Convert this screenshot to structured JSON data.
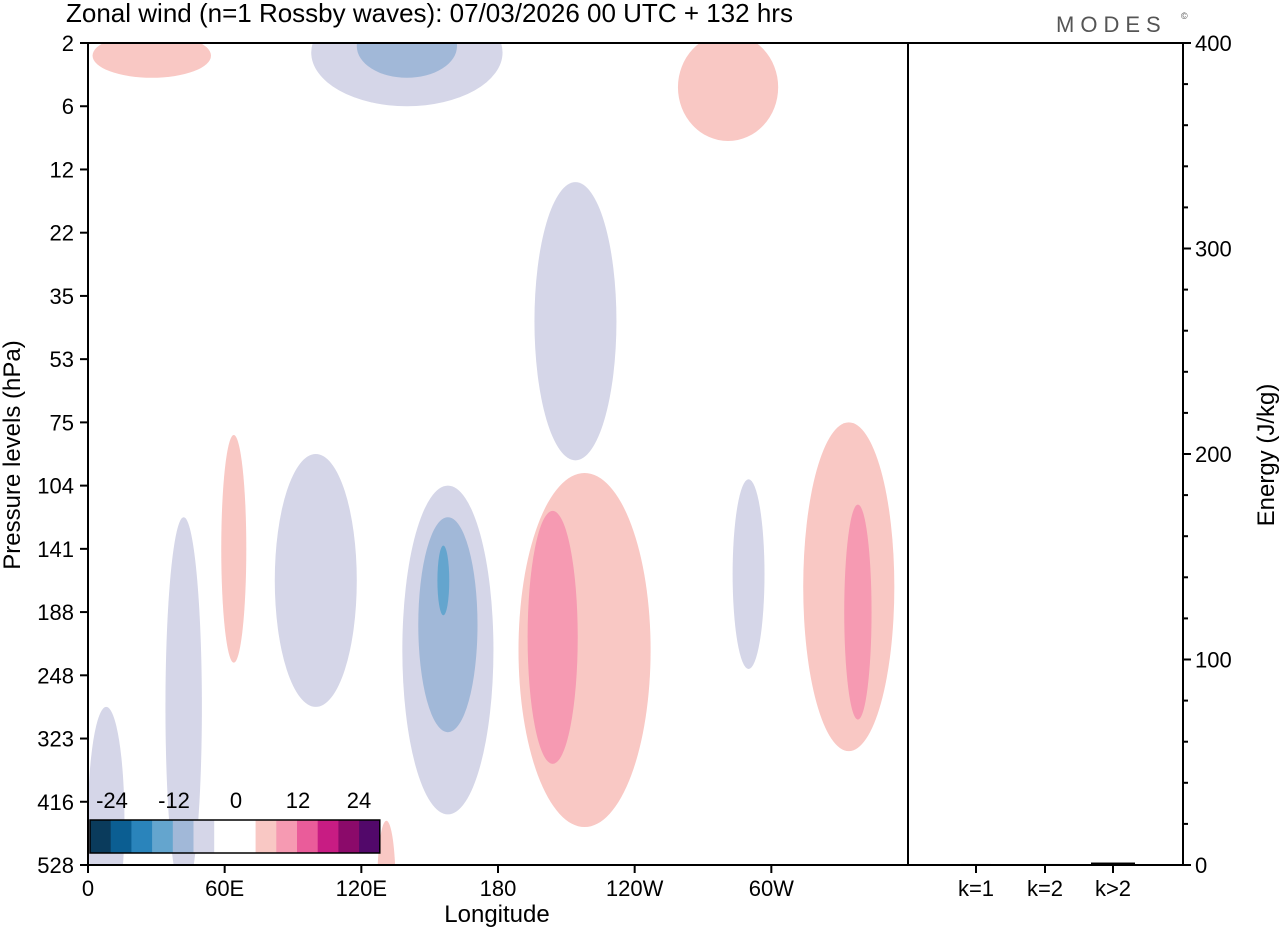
{
  "chart_data": {
    "type": "heatmap",
    "title": "Zonal wind (n=1 Rossby waves):  07/03/2026  00 UTC  + 132 hrs",
    "brand": "MODES",
    "brand_mark": "©",
    "xlabel": "Longitude",
    "ylabel": "Pressure levels (hPa)",
    "y2label": "Energy (J/kg)",
    "x_ticks": [
      "0",
      "60E",
      "120E",
      "180",
      "120W",
      "60W"
    ],
    "x_tick_values": [
      0,
      60,
      120,
      180,
      240,
      300
    ],
    "xlim": [
      0,
      360
    ],
    "y_ticks": [
      "2",
      "6",
      "12",
      "22",
      "35",
      "53",
      "75",
      "104",
      "141",
      "188",
      "248",
      "323",
      "416",
      "528"
    ],
    "y2_ticks": [
      "400",
      "300",
      "200",
      "100",
      "0"
    ],
    "y2_tick_values": [
      400,
      300,
      200,
      100,
      0
    ],
    "y2lim": [
      0,
      400
    ],
    "colorbar_labels": [
      "-24",
      "-12",
      "0",
      "12",
      "24"
    ],
    "colorbar_colors": [
      "#0a3b5c",
      "#0b5e92",
      "#2a84bb",
      "#64a5ce",
      "#a1b8d8",
      "#d5d6e8",
      "#ffffff",
      "#ffffff",
      "#f9c8c4",
      "#f69ab2",
      "#ea5c9a",
      "#c81c83",
      "#8b0a6a",
      "#52086a"
    ],
    "energy_categories": [
      "k=1",
      "k=2",
      "k>2"
    ],
    "energy_values": [
      0.5,
      0.5,
      1.2
    ],
    "contours": [
      {
        "level": "-6",
        "color": "#d5d6e8",
        "lon_center": 42,
        "level_center": 10.5,
        "lon_radius": 8,
        "level_radius": 3.0
      },
      {
        "level": "-6",
        "color": "#d5d6e8",
        "lon_center": 8,
        "level_center": 12.3,
        "lon_radius": 8,
        "level_radius": 1.8
      },
      {
        "level": "-6",
        "color": "#d5d6e8",
        "lon_center": 100,
        "level_center": 8.5,
        "lon_radius": 18,
        "level_radius": 2.0
      },
      {
        "level": "-6",
        "color": "#d5d6e8",
        "lon_center": 158,
        "level_center": 9.6,
        "lon_radius": 20,
        "level_radius": 2.6
      },
      {
        "level": "-6",
        "color": "#d5d6e8",
        "lon_center": 214,
        "level_center": 4.4,
        "lon_radius": 18,
        "level_radius": 2.2
      },
      {
        "level": "-6",
        "color": "#d5d6e8",
        "lon_center": 290,
        "level_center": 8.4,
        "lon_radius": 7,
        "level_radius": 1.5
      },
      {
        "level": "-6",
        "color": "#d5d6e8",
        "lon_center": 140,
        "level_center": 0.15,
        "lon_radius": 42,
        "level_radius": 0.85
      },
      {
        "level": "-12",
        "color": "#a1b8d8",
        "lon_center": 158,
        "level_center": 9.2,
        "lon_radius": 13,
        "level_radius": 1.7
      },
      {
        "level": "-12",
        "color": "#a1b8d8",
        "lon_center": 140,
        "level_center": 0.05,
        "lon_radius": 22,
        "level_radius": 0.5
      },
      {
        "level": "-18",
        "color": "#64a5ce",
        "lon_center": 156,
        "level_center": 8.5,
        "lon_radius": 2.6,
        "level_radius": 0.55
      },
      {
        "level": "6",
        "color": "#f9c8c4",
        "lon_center": 64,
        "level_center": 8.0,
        "lon_radius": 5.5,
        "level_radius": 1.8
      },
      {
        "level": "6",
        "color": "#f9c8c4",
        "lon_center": 218,
        "level_center": 9.6,
        "lon_radius": 29,
        "level_radius": 2.8
      },
      {
        "level": "6",
        "color": "#f9c8c4",
        "lon_center": 334,
        "level_center": 8.6,
        "lon_radius": 20,
        "level_radius": 2.6
      },
      {
        "level": "6",
        "color": "#f9c8c4",
        "lon_center": 131,
        "level_center": 13.3,
        "lon_radius": 4,
        "level_radius": 1.0
      },
      {
        "level": "6",
        "color": "#f9c8c4",
        "lon_center": 28,
        "level_center": 0.2,
        "lon_radius": 26,
        "level_radius": 0.35
      },
      {
        "level": "6",
        "color": "#f9c8c4",
        "lon_center": 281,
        "level_center": 0.7,
        "lon_radius": 22,
        "level_radius": 0.85
      },
      {
        "level": "12",
        "color": "#f69ab2",
        "lon_center": 204,
        "level_center": 9.4,
        "lon_radius": 11,
        "level_radius": 2.0
      },
      {
        "level": "12",
        "color": "#f69ab2",
        "lon_center": 338,
        "level_center": 9.0,
        "lon_radius": 6,
        "level_radius": 1.7
      }
    ]
  }
}
